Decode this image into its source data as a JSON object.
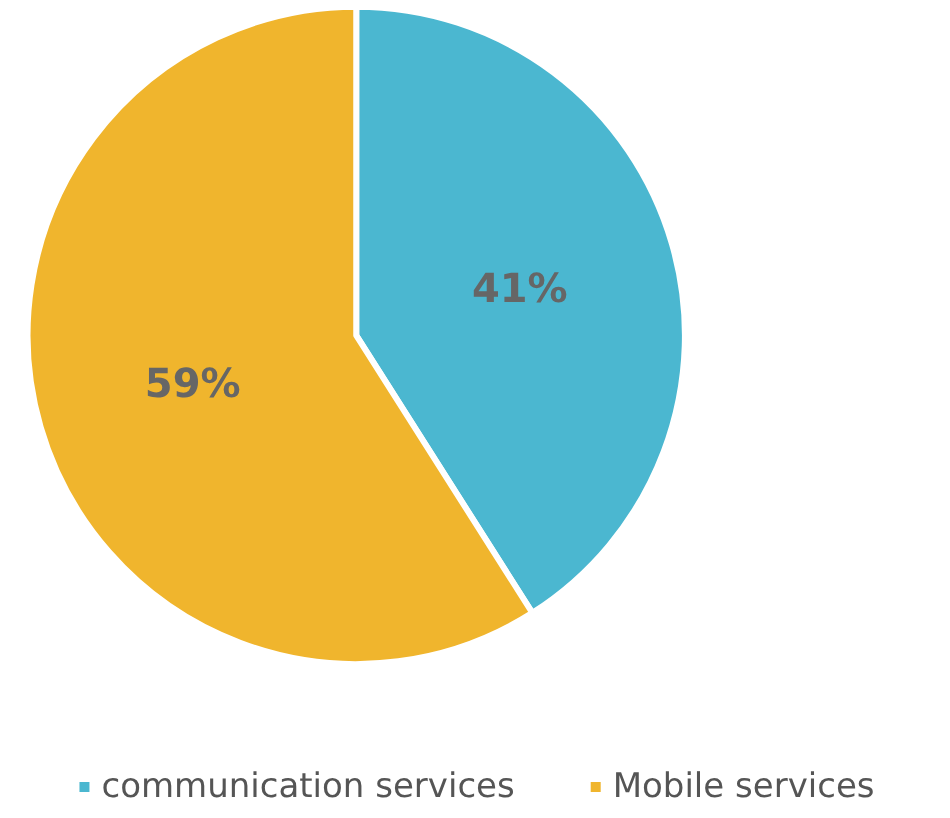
{
  "chart_data": {
    "type": "pie",
    "categories": [
      "communication services",
      "Mobile services"
    ],
    "values": [
      41,
      59
    ],
    "colors": [
      "#4bb7d0",
      "#f0b52d"
    ],
    "value_labels": [
      "41%",
      "59%"
    ],
    "legend": "bottom"
  }
}
